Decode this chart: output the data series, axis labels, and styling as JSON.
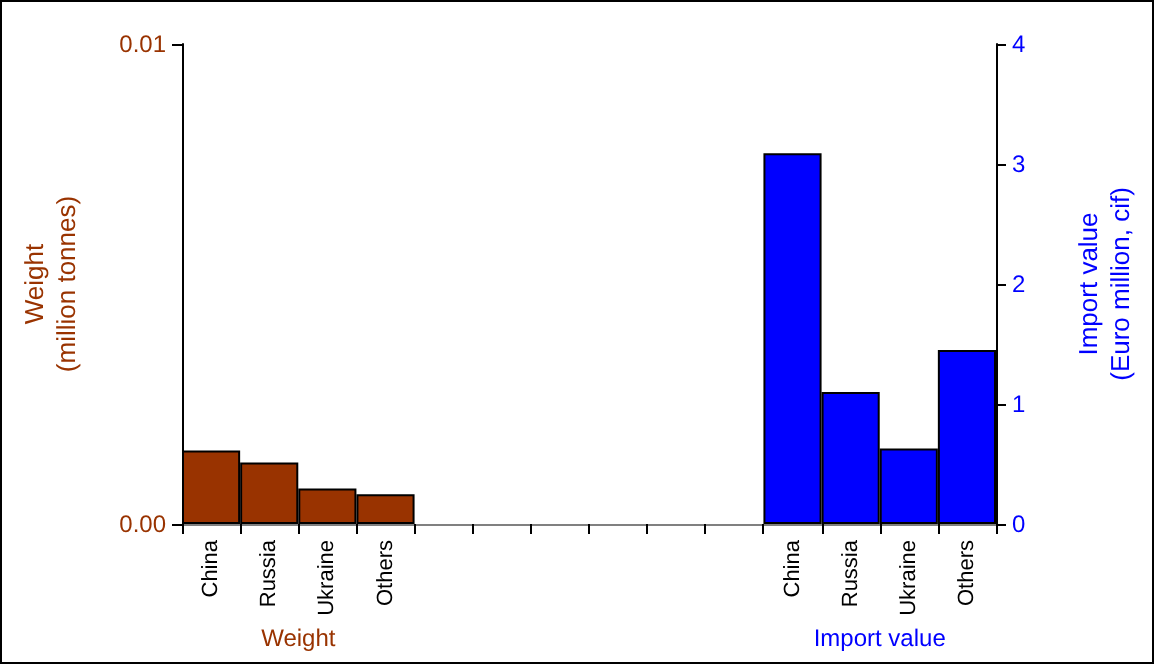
{
  "chart_data": {
    "type": "bar",
    "ylabel": "Weight\n(million tonnes)",
    "y2label": "Import value\n(Euro million, cif)",
    "categories": [
      "China",
      "Russia",
      "Ukraine",
      "Others",
      null,
      null,
      null,
      null,
      null,
      null,
      "China",
      "Russia",
      "Ukraine",
      "Others"
    ],
    "series": [
      {
        "name": "Weight",
        "color": "#993300",
        "values": [
          0.00153,
          0.00128,
          0.00074,
          0.00062,
          null,
          null,
          null,
          null,
          null,
          null,
          null,
          null,
          null,
          null
        ]
      },
      {
        "name": "Import value",
        "color": "#0000ff",
        "axis": "y2",
        "values": [
          null,
          null,
          null,
          null,
          null,
          null,
          null,
          null,
          null,
          null,
          3.09,
          1.1,
          0.63,
          1.45
        ]
      }
    ],
    "ylim": [
      0,
      0.01
    ],
    "yticks": [
      {
        "value": 0,
        "label": "0.00"
      },
      {
        "value": 0.01,
        "label": "0.01"
      }
    ],
    "y2lim": [
      0,
      4
    ],
    "y2ticks": [
      0,
      1,
      2,
      3,
      4
    ]
  }
}
